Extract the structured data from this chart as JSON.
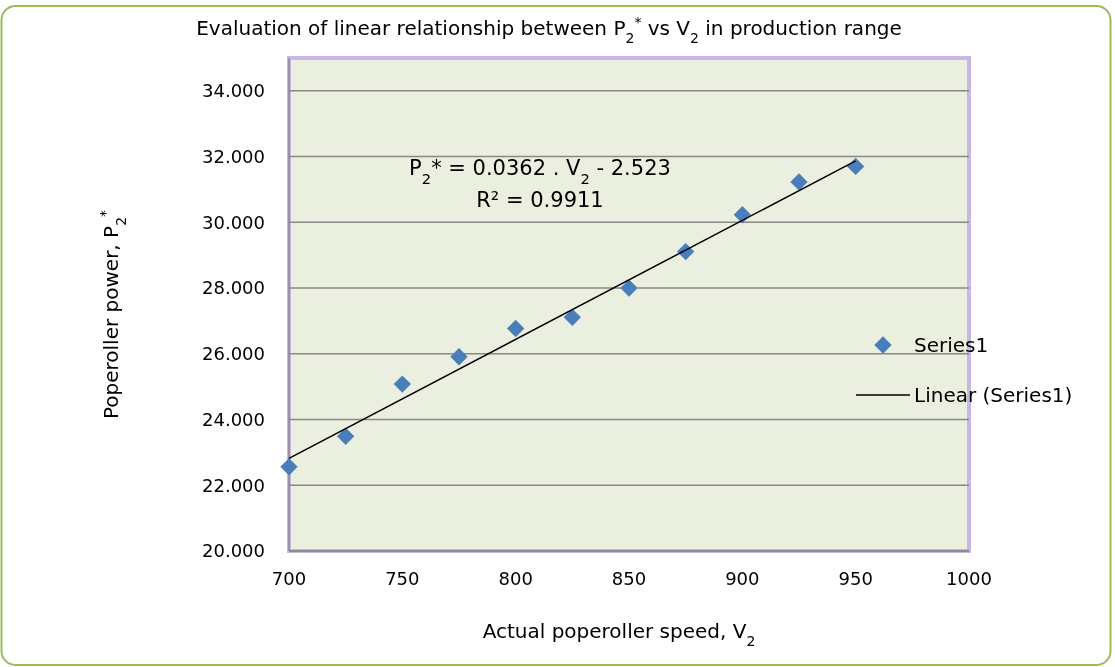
{
  "chart_data": {
    "type": "scatter",
    "title": "Evaluation of linear relationship between P$_{2}$$^{*}$ vs V$_{2}$ in production range",
    "xlabel": "Actual poperoller speed, V$_{2}$",
    "ylabel": "Poperoller power, P$_{2}$$^{*}$",
    "annotations": [
      "P$_{2}$* = 0.0362 . V$_{2}$ - 2.523",
      "R² = 0.9911"
    ],
    "x": [
      700,
      725,
      750,
      775,
      800,
      825,
      850,
      875,
      900,
      925,
      950
    ],
    "series": [
      {
        "name": "Series1",
        "color": "#4a7ebb",
        "marker": "diamond",
        "values": [
          22.56,
          23.49,
          25.08,
          25.91,
          26.77,
          27.11,
          28.0,
          29.11,
          30.23,
          31.23,
          31.7
        ]
      },
      {
        "name": "Linear (Series1)",
        "type": "line",
        "color": "#000000",
        "marker": "none",
        "x": [
          700,
          950
        ],
        "values": [
          22.82,
          31.87
        ]
      }
    ],
    "xlim": [
      700,
      1000
    ],
    "xticks": [
      700,
      750,
      800,
      850,
      900,
      950,
      1000
    ],
    "ylim": [
      20,
      35
    ],
    "yticks": [
      {
        "value": 20,
        "label": "20.000"
      },
      {
        "value": 22,
        "label": "22.000"
      },
      {
        "value": 24,
        "label": "24.000"
      },
      {
        "value": 26,
        "label": "26.000"
      },
      {
        "value": 28,
        "label": "28.000"
      },
      {
        "value": 30,
        "label": "30.000"
      },
      {
        "value": 32,
        "label": "32.000"
      },
      {
        "value": 34,
        "label": "34.000"
      }
    ],
    "grid": "y",
    "legend": "right"
  }
}
